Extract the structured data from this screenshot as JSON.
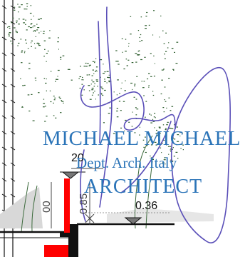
{
  "drawing": {
    "dimension_top": "20",
    "dimension_level": "0.36",
    "dimension_vertical": "0.85",
    "dimension_left_partial": "00"
  },
  "stamp": {
    "name": "MICHAEL MICHAEL",
    "department": "Dept. Arch. Italy",
    "title": "ARCHITECT",
    "ink_color": "#2b74b8"
  },
  "signature": {
    "ink_color": "#5a4fb8"
  }
}
